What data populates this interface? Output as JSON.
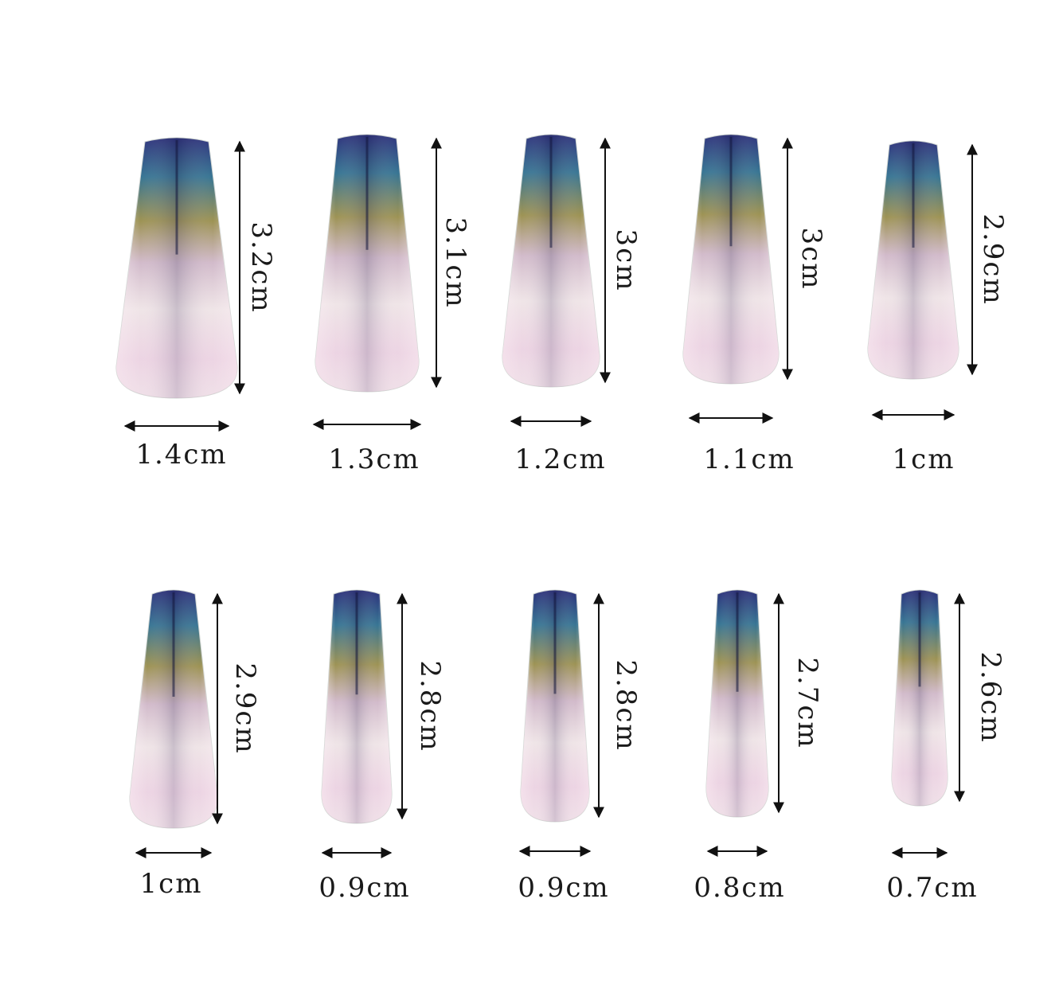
{
  "nails": [
    {
      "width_label": "1.4cm",
      "length_label": "3.2cm"
    },
    {
      "width_label": "1.3cm",
      "length_label": "3.1cm"
    },
    {
      "width_label": "1.2cm",
      "length_label": "3cm"
    },
    {
      "width_label": "1.1cm",
      "length_label": "3cm"
    },
    {
      "width_label": "1cm",
      "length_label": "2.9cm"
    },
    {
      "width_label": "1cm",
      "length_label": "2.9cm"
    },
    {
      "width_label": "0.9cm",
      "length_label": "2.8cm"
    },
    {
      "width_label": "0.9cm",
      "length_label": "2.8cm"
    },
    {
      "width_label": "0.8cm",
      "length_label": "2.7cm"
    },
    {
      "width_label": "0.7cm",
      "length_label": "2.6cm"
    }
  ],
  "colors": {
    "base_dark": "#2b2f7a",
    "teal": "#2c8a86",
    "olive": "#9a9a3a",
    "pearl": "#eef1ec",
    "pink": "#f2c8dc",
    "arrow": "#111111"
  }
}
